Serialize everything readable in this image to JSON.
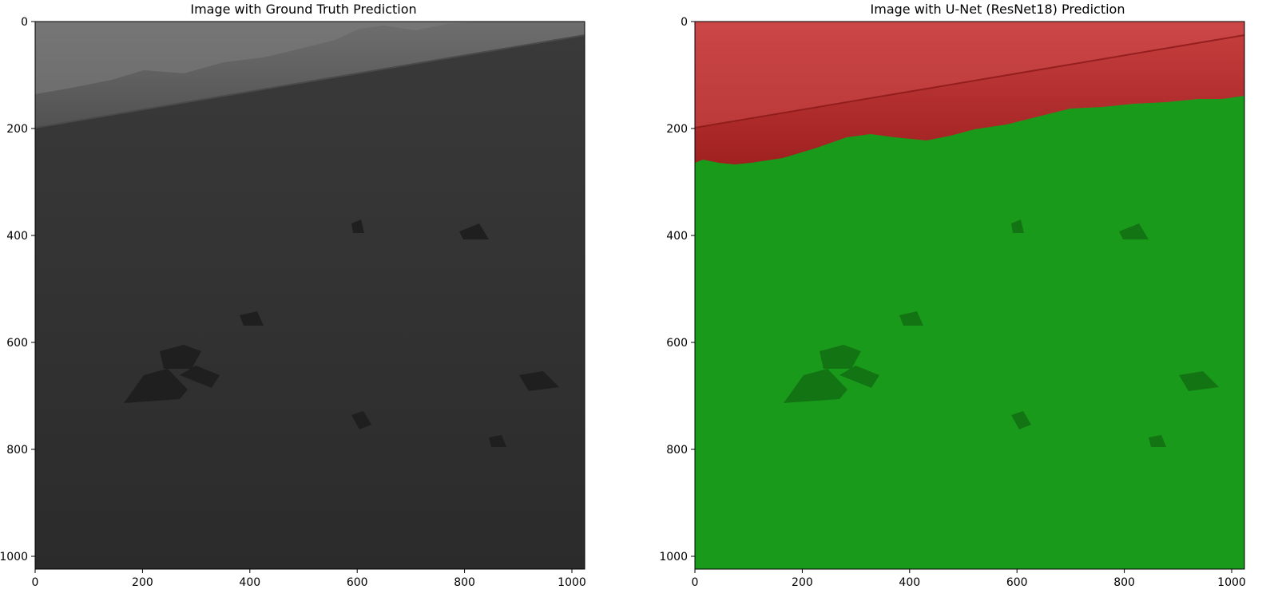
{
  "figure": {
    "panels": [
      {
        "title": "Image with Ground Truth Prediction",
        "image_description": "grayscale Mars terrain photo: sky band in upper-left, rocky plain below",
        "overlay": "none",
        "x_ticks": [
          "0",
          "200",
          "400",
          "600",
          "800",
          "1000"
        ],
        "y_ticks": [
          "0",
          "200",
          "400",
          "600",
          "800",
          "1000"
        ]
      },
      {
        "title": "Image with U-Net (ResNet18) Prediction",
        "image_description": "same terrain with semantic overlay: red = sky region, green = ground region",
        "overlay": "segmentation",
        "overlay_colors": {
          "sky": "#c0302c",
          "ground": "#1a9a1a"
        },
        "x_ticks": [
          "0",
          "200",
          "400",
          "600",
          "800",
          "1000"
        ],
        "y_ticks": [
          "0",
          "200",
          "400",
          "600",
          "800",
          "1000"
        ]
      }
    ],
    "axis_range": {
      "x": [
        0,
        1024
      ],
      "y": [
        0,
        1024
      ]
    }
  }
}
